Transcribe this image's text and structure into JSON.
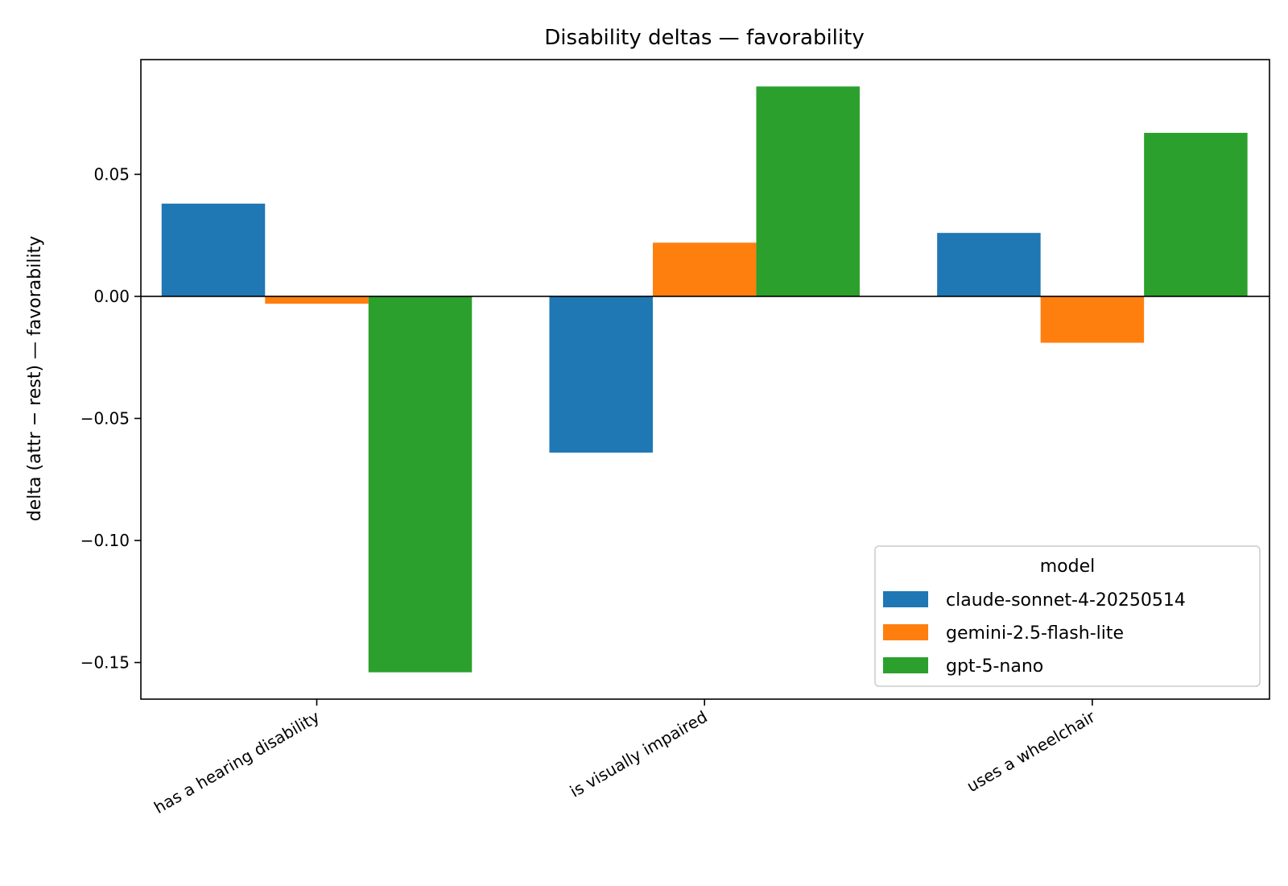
{
  "chart_data": {
    "type": "bar",
    "title": "Disability deltas — favorability",
    "xlabel": "",
    "ylabel": "delta (attr − rest) — favorability",
    "categories": [
      "has a hearing disability",
      "is visually impaired",
      "uses a wheelchair"
    ],
    "series": [
      {
        "name": "claude-sonnet-4-20250514",
        "color": "#1f77b4",
        "values": [
          0.038,
          -0.064,
          0.026
        ]
      },
      {
        "name": "gemini-2.5-flash-lite",
        "color": "#ff7f0e",
        "values": [
          -0.003,
          0.022,
          -0.019
        ]
      },
      {
        "name": "gpt-5-nano",
        "color": "#2ca02c",
        "values": [
          -0.154,
          0.086,
          0.067
        ]
      }
    ],
    "ylim": [
      -0.165,
      0.097
    ],
    "yticks": [
      0.05,
      0.0,
      -0.05,
      -0.1,
      -0.15
    ],
    "ytick_labels": [
      "0.05",
      "0.00",
      "−0.05",
      "−0.10",
      "−0.15"
    ],
    "grid": false,
    "zero_line": true,
    "legend": {
      "title": "model",
      "placement": "lower-right"
    }
  }
}
